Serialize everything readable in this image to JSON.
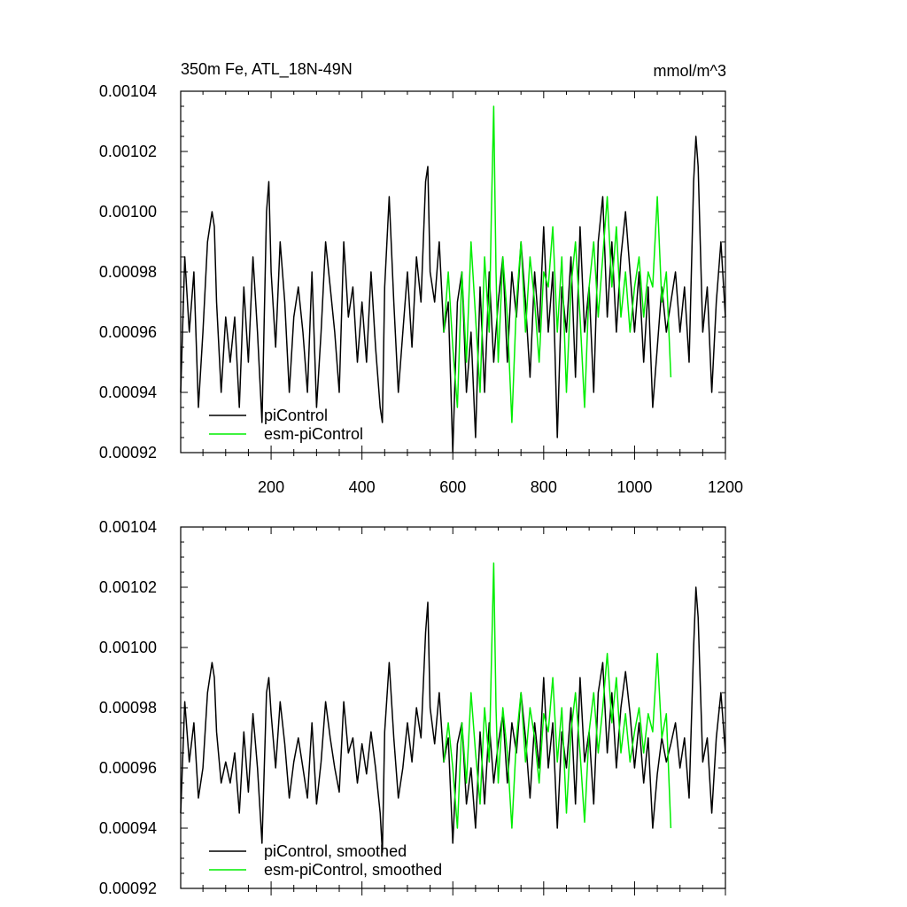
{
  "header": {
    "title_left": "350m Fe, ATL_18N-49N",
    "title_right": "mmol/m^3"
  },
  "colors": {
    "picontrol": "#000000",
    "esm_picontrol": "#00ee00",
    "frame": "#000000"
  },
  "chart_data": [
    {
      "type": "line",
      "title": "",
      "xlabel": "",
      "ylabel": "",
      "xlim": [
        1,
        1200
      ],
      "ylim": [
        0.00092,
        0.00104
      ],
      "xticks": [
        200,
        400,
        600,
        800,
        1000,
        1200
      ],
      "xtick_labels": [
        "200",
        "400",
        "600",
        "800",
        "1000",
        "1200"
      ],
      "yticks": [
        0.00092,
        0.00094,
        0.00096,
        0.00098,
        0.001,
        0.00102,
        0.00104
      ],
      "ytick_labels": [
        "0.00092",
        "0.00094",
        "0.00096",
        "0.00098",
        "0.00100",
        "0.00102",
        "0.00104"
      ],
      "grid": false,
      "legend": "bottom-left",
      "series": [
        {
          "name": "piControl",
          "color_key": "picontrol",
          "x": [
            1,
            10,
            20,
            30,
            40,
            50,
            60,
            70,
            75,
            80,
            90,
            100,
            110,
            120,
            130,
            140,
            150,
            160,
            170,
            180,
            190,
            195,
            200,
            210,
            220,
            230,
            240,
            250,
            260,
            270,
            280,
            290,
            300,
            310,
            320,
            330,
            340,
            350,
            360,
            370,
            380,
            390,
            400,
            410,
            420,
            430,
            440,
            445,
            450,
            460,
            470,
            480,
            490,
            500,
            510,
            520,
            530,
            540,
            545,
            550,
            560,
            570,
            580,
            590,
            600,
            610,
            620,
            630,
            640,
            650,
            660,
            670,
            680,
            690,
            700,
            710,
            720,
            730,
            740,
            750,
            760,
            770,
            780,
            790,
            800,
            810,
            820,
            830,
            840,
            850,
            860,
            870,
            880,
            890,
            900,
            910,
            920,
            930,
            940,
            950,
            960,
            970,
            980,
            990,
            1000,
            1010,
            1020,
            1030,
            1040,
            1050,
            1060,
            1070,
            1080,
            1090,
            1100,
            1110,
            1120,
            1130,
            1135,
            1140,
            1150,
            1160,
            1170,
            1180,
            1190,
            1200
          ],
          "y": [
            0.00094,
            0.000985,
            0.00096,
            0.00098,
            0.000935,
            0.00096,
            0.00099,
            0.001,
            0.000995,
            0.00097,
            0.00094,
            0.000965,
            0.00095,
            0.000965,
            0.000935,
            0.000975,
            0.00095,
            0.000985,
            0.00096,
            0.00093,
            0.001,
            0.00101,
            0.00098,
            0.000955,
            0.00099,
            0.00097,
            0.00094,
            0.000965,
            0.000975,
            0.00096,
            0.00094,
            0.00098,
            0.000935,
            0.00096,
            0.00099,
            0.000975,
            0.00096,
            0.00094,
            0.00099,
            0.000965,
            0.000975,
            0.00095,
            0.00097,
            0.00095,
            0.00098,
            0.000955,
            0.000935,
            0.00093,
            0.000975,
            0.001005,
            0.00097,
            0.00094,
            0.00096,
            0.00098,
            0.000955,
            0.000985,
            0.00097,
            0.00101,
            0.001015,
            0.00098,
            0.00097,
            0.00099,
            0.00096,
            0.00097,
            0.00092,
            0.00097,
            0.00098,
            0.00094,
            0.00096,
            0.000925,
            0.000975,
            0.00094,
            0.00098,
            0.00095,
            0.00097,
            0.000985,
            0.00095,
            0.00098,
            0.000965,
            0.00099,
            0.00097,
            0.000945,
            0.00098,
            0.00096,
            0.000995,
            0.00096,
            0.00098,
            0.000925,
            0.000975,
            0.00096,
            0.000985,
            0.000945,
            0.000995,
            0.00096,
            0.000975,
            0.00094,
            0.00099,
            0.001005,
            0.000965,
            0.00099,
            0.00096,
            0.000985,
            0.001,
            0.00098,
            0.00096,
            0.00098,
            0.00095,
            0.000975,
            0.000935,
            0.000955,
            0.000975,
            0.00096,
            0.00097,
            0.00098,
            0.00096,
            0.000975,
            0.00095,
            0.00101,
            0.001025,
            0.001015,
            0.00096,
            0.000975,
            0.00094,
            0.00097,
            0.00099,
            0.000965
          ]
        },
        {
          "name": "esm-piControl",
          "color_key": "esm_picontrol",
          "x": [
            580,
            590,
            600,
            610,
            620,
            630,
            640,
            650,
            660,
            670,
            680,
            685,
            690,
            695,
            700,
            710,
            720,
            730,
            740,
            750,
            760,
            770,
            780,
            790,
            800,
            810,
            820,
            830,
            840,
            850,
            860,
            870,
            880,
            890,
            900,
            910,
            920,
            930,
            940,
            950,
            960,
            970,
            980,
            990,
            1000,
            1010,
            1020,
            1030,
            1040,
            1050,
            1060,
            1070,
            1080
          ],
          "y": [
            0.00096,
            0.00098,
            0.000955,
            0.000935,
            0.00098,
            0.00095,
            0.00099,
            0.000965,
            0.00094,
            0.000985,
            0.00096,
            0.001,
            0.001035,
            0.00098,
            0.00095,
            0.000985,
            0.000965,
            0.00093,
            0.00097,
            0.00099,
            0.00096,
            0.000985,
            0.00097,
            0.00095,
            0.00098,
            0.000975,
            0.000995,
            0.00096,
            0.000985,
            0.00094,
            0.000975,
            0.00099,
            0.000965,
            0.000935,
            0.000975,
            0.00099,
            0.000965,
            0.000985,
            0.001005,
            0.000975,
            0.000995,
            0.000965,
            0.00098,
            0.00096,
            0.000975,
            0.000985,
            0.000965,
            0.00098,
            0.000975,
            0.001005,
            0.00097,
            0.00098,
            0.000945
          ]
        }
      ]
    },
    {
      "type": "line",
      "title": "",
      "xlabel": "",
      "ylabel": "",
      "xlim": [
        1,
        1200
      ],
      "ylim": [
        0.00092,
        0.00104
      ],
      "xticks": [
        200,
        400,
        600,
        800,
        1000,
        1200
      ],
      "yticks": [
        0.00092,
        0.00094,
        0.00096,
        0.00098,
        0.001,
        0.00102,
        0.00104
      ],
      "ytick_labels": [
        "0.00092",
        "0.00094",
        "0.00096",
        "0.00098",
        "0.00100",
        "0.00102",
        "0.00104"
      ],
      "grid": false,
      "legend": "bottom-left",
      "series": [
        {
          "name": "piControl, smoothed",
          "color_key": "picontrol",
          "x": [
            1,
            10,
            20,
            30,
            40,
            50,
            60,
            70,
            75,
            80,
            90,
            100,
            110,
            120,
            130,
            140,
            150,
            160,
            170,
            180,
            190,
            195,
            200,
            210,
            220,
            230,
            240,
            250,
            260,
            270,
            280,
            290,
            300,
            310,
            320,
            330,
            340,
            350,
            360,
            370,
            380,
            390,
            400,
            410,
            420,
            430,
            440,
            445,
            450,
            460,
            470,
            480,
            490,
            500,
            510,
            520,
            530,
            540,
            545,
            550,
            560,
            570,
            580,
            590,
            600,
            610,
            620,
            630,
            640,
            650,
            660,
            670,
            680,
            690,
            700,
            710,
            720,
            730,
            740,
            750,
            760,
            770,
            780,
            790,
            800,
            810,
            820,
            830,
            840,
            850,
            860,
            870,
            880,
            890,
            900,
            910,
            920,
            930,
            940,
            950,
            960,
            970,
            980,
            990,
            1000,
            1010,
            1020,
            1030,
            1040,
            1050,
            1060,
            1070,
            1080,
            1090,
            1100,
            1110,
            1120,
            1130,
            1135,
            1140,
            1150,
            1160,
            1170,
            1180,
            1190,
            1200
          ],
          "y": [
            0.000945,
            0.000982,
            0.000962,
            0.000975,
            0.00095,
            0.00096,
            0.000985,
            0.000995,
            0.00099,
            0.000972,
            0.000955,
            0.000962,
            0.000955,
            0.000965,
            0.000945,
            0.000972,
            0.000952,
            0.000978,
            0.00096,
            0.000935,
            0.000985,
            0.00099,
            0.000978,
            0.00096,
            0.000982,
            0.000968,
            0.00095,
            0.000962,
            0.00097,
            0.00096,
            0.00095,
            0.000975,
            0.000948,
            0.000962,
            0.000982,
            0.00097,
            0.00096,
            0.000952,
            0.000982,
            0.000965,
            0.00097,
            0.000955,
            0.000968,
            0.000958,
            0.000972,
            0.00096,
            0.000945,
            0.000932,
            0.000972,
            0.000995,
            0.00097,
            0.00095,
            0.00096,
            0.000975,
            0.000962,
            0.00098,
            0.00097,
            0.001005,
            0.001015,
            0.00098,
            0.000968,
            0.000985,
            0.000962,
            0.00097,
            0.000935,
            0.000968,
            0.000975,
            0.000948,
            0.00096,
            0.00094,
            0.000972,
            0.000948,
            0.000975,
            0.000955,
            0.000968,
            0.000978,
            0.000955,
            0.000975,
            0.000965,
            0.000985,
            0.00097,
            0.00095,
            0.000975,
            0.00096,
            0.00099,
            0.00096,
            0.000975,
            0.00094,
            0.000972,
            0.00096,
            0.00098,
            0.000948,
            0.00099,
            0.000962,
            0.000972,
            0.000948,
            0.000985,
            0.000995,
            0.000965,
            0.000985,
            0.00096,
            0.00098,
            0.000992,
            0.000978,
            0.00096,
            0.000975,
            0.000955,
            0.00097,
            0.00094,
            0.000958,
            0.00097,
            0.000962,
            0.000968,
            0.000975,
            0.00096,
            0.00097,
            0.00095,
            0.001,
            0.00102,
            0.00101,
            0.000962,
            0.00097,
            0.000945,
            0.00097,
            0.000985,
            0.000965
          ]
        },
        {
          "name": "esm-piControl, smoothed",
          "color_key": "esm_picontrol",
          "x": [
            580,
            590,
            600,
            610,
            620,
            630,
            640,
            650,
            660,
            670,
            680,
            685,
            690,
            695,
            700,
            710,
            720,
            730,
            740,
            750,
            760,
            770,
            780,
            790,
            800,
            810,
            820,
            830,
            840,
            850,
            860,
            870,
            880,
            890,
            900,
            910,
            920,
            930,
            940,
            950,
            960,
            970,
            980,
            990,
            1000,
            1010,
            1020,
            1030,
            1040,
            1050,
            1060,
            1070,
            1080
          ],
          "y": [
            0.000962,
            0.000975,
            0.00096,
            0.00094,
            0.000975,
            0.000955,
            0.000985,
            0.000965,
            0.000948,
            0.00098,
            0.000962,
            0.000995,
            0.001028,
            0.00098,
            0.000955,
            0.00098,
            0.000965,
            0.00094,
            0.00097,
            0.000985,
            0.000962,
            0.00098,
            0.00097,
            0.000955,
            0.000978,
            0.000972,
            0.00099,
            0.000962,
            0.00098,
            0.000945,
            0.000972,
            0.000985,
            0.000965,
            0.000942,
            0.000972,
            0.000985,
            0.000965,
            0.00098,
            0.000998,
            0.000975,
            0.00099,
            0.000965,
            0.000978,
            0.000962,
            0.000972,
            0.00098,
            0.000965,
            0.000978,
            0.000972,
            0.000998,
            0.00097,
            0.000978,
            0.00094
          ]
        }
      ]
    }
  ]
}
